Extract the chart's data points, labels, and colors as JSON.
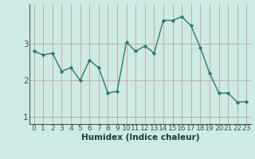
{
  "x": [
    0,
    1,
    2,
    3,
    4,
    5,
    6,
    7,
    8,
    9,
    10,
    11,
    12,
    13,
    14,
    15,
    16,
    17,
    18,
    19,
    20,
    21,
    22,
    23
  ],
  "y": [
    2.8,
    2.7,
    2.75,
    2.25,
    2.35,
    2.0,
    2.55,
    2.35,
    1.65,
    1.7,
    3.05,
    2.8,
    2.95,
    2.75,
    3.65,
    3.65,
    3.75,
    3.5,
    2.9,
    2.2,
    1.65,
    1.65,
    1.4,
    1.42
  ],
  "xlabel": "Humidex (Indice chaleur)",
  "xlim": [
    -0.5,
    23.5
  ],
  "ylim": [
    0.8,
    4.1
  ],
  "yticks": [
    1,
    2,
    3
  ],
  "xticks": [
    0,
    1,
    2,
    3,
    4,
    5,
    6,
    7,
    8,
    9,
    10,
    11,
    12,
    13,
    14,
    15,
    16,
    17,
    18,
    19,
    20,
    21,
    22,
    23
  ],
  "line_color": "#2d7a6a",
  "marker_color": "#2d7a6a",
  "bg_color": "#ceeae4",
  "vgrid_color": "#c4a0a0",
  "hgrid_color": "#c4a0a0",
  "tick_label_color": "#2d5a50",
  "xlabel_color": "#1a3a30",
  "xlabel_fontsize": 7.5,
  "tick_fontsize": 6.5,
  "ytick_fontsize": 7.5
}
